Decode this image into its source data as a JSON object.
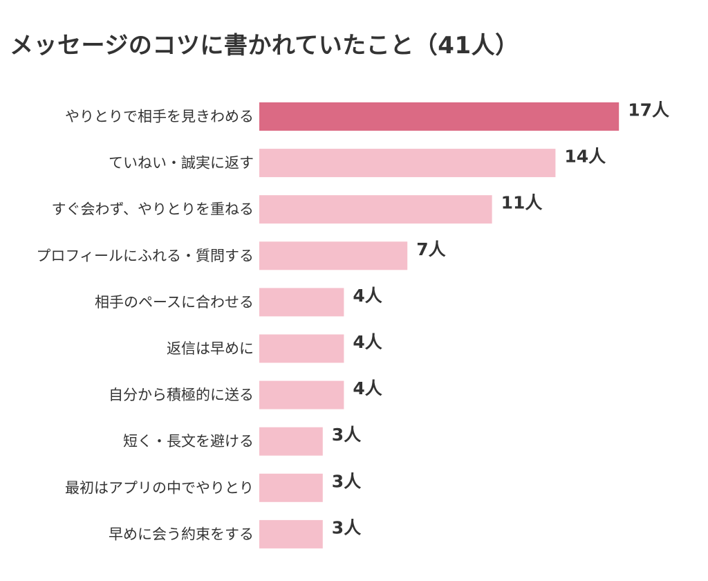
{
  "chart_data": {
    "type": "bar",
    "orientation": "horizontal",
    "title": "メッセージのコツに書かれていたこと（41人）",
    "xlabel": "",
    "ylabel": "",
    "categories": [
      "やりとりで相手を見きわめる",
      "ていねい・誠実に返す",
      "すぐ会わず、やりとりを重ねる",
      "プロフィールにふれる・質問する",
      "相手のペースに合わせる",
      "返信は早めに",
      "自分から積極的に送る",
      "短く・長文を避ける",
      "最初はアプリの中でやりとり",
      "早めに会う約束をする"
    ],
    "values": [
      17,
      14,
      11,
      7,
      4,
      4,
      4,
      3,
      3,
      3
    ],
    "value_unit": "人",
    "colors": {
      "highlight": "#DB6A84",
      "default": "#F5BFCB"
    },
    "highlight_index": 0,
    "grid": false,
    "legend": "none"
  }
}
